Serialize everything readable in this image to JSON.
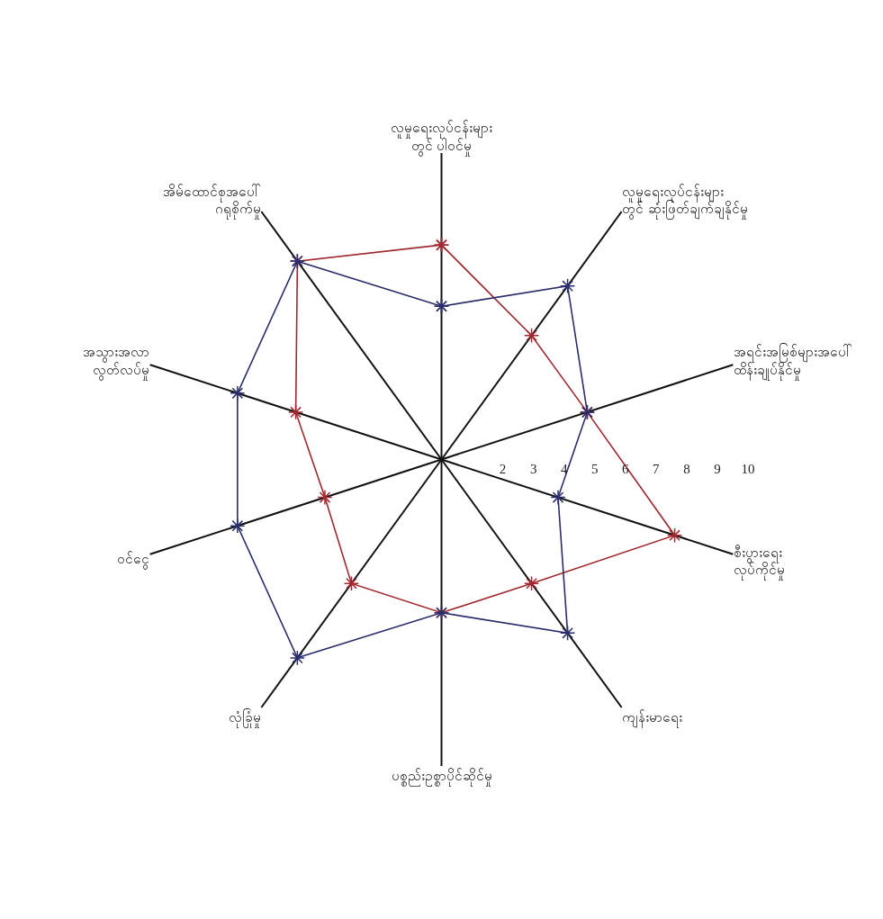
{
  "chart_data": {
    "type": "radar",
    "categories": [
      "လူမှုရေးလုပ်ငန်းများ\nတွင် ပါဝင်မှု",
      "လူမှုရေးလုပ်ငန်းများ\nတွင် ဆုံးဖြတ်ချက်ချနိုင်မှု",
      "အရင်းအမြစ်များအပေါ်\nထိန်းချုပ်နိုင်မှု",
      "စီးပွားရေး\nလုပ်ကိုင်မှု",
      "ကျန်းမာရေး",
      "ပစ္စည်းဥစ္စာပိုင်ဆိုင်မှု",
      "လုံခြုံမှု",
      "ဝင်ငွေ",
      "အသွားအလာ\nလွတ်လပ်မှု",
      "အိမ်ထောင်စုအပေါ်\nဂရုစိုက်မှု"
    ],
    "series": [
      {
        "color": "#a0282e",
        "values": [
          7,
          5,
          5,
          8,
          5,
          5,
          5,
          4,
          5,
          8
        ]
      },
      {
        "color": "#2a2d6b",
        "values": [
          5,
          7,
          5,
          4,
          7,
          5,
          8,
          7,
          7,
          8
        ]
      }
    ],
    "ylim": [
      0,
      10
    ],
    "yticks": [
      2,
      3,
      4,
      5,
      6,
      7,
      8,
      9,
      10
    ],
    "grid": "x",
    "marker": "cross",
    "line_style": "solid"
  }
}
